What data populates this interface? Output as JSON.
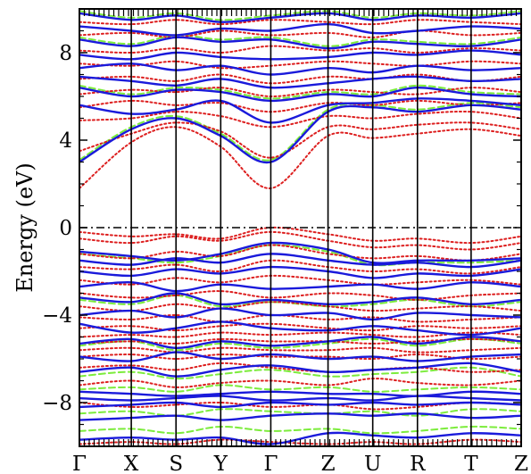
{
  "chart_data": {
    "type": "line",
    "title": "",
    "ylabel": "Energy (eV)",
    "xlabel": "",
    "ylim": [
      -10,
      10
    ],
    "yticks": [
      8,
      4,
      0,
      -4,
      -8
    ],
    "ytick_labels": [
      "8",
      "4",
      "0",
      "−4",
      "−8"
    ],
    "kpoints": [
      "Γ",
      "X",
      "S",
      "Y",
      "Γ",
      "Z",
      "U",
      "R",
      "T",
      "Z"
    ],
    "kpoint_positions": [
      0,
      0.58,
      1.08,
      1.58,
      2.14,
      2.78,
      3.28,
      3.78,
      4.38,
      4.94
    ],
    "fermi_level": 0,
    "grid": false,
    "legend": "none",
    "colors": {
      "series_a": "#1a1adb",
      "series_b": "#dd1f1f",
      "series_c": "#7cec3c",
      "fermi": "#000000"
    },
    "series": [
      {
        "style": "solid",
        "color": "#1a1adb",
        "bands": [
          [
            -9.7,
            -9.6,
            -9.7,
            -9.6,
            -9.9,
            -9.4,
            -9.5,
            -9.6,
            -9.4,
            -9.5
          ],
          [
            -8.8,
            -8.7,
            -8.6,
            -8.8,
            -8.6,
            -8.5,
            -8.6,
            -8.5,
            -8.7,
            -8.6
          ],
          [
            -8.2,
            -8.1,
            -8.0,
            -8.2,
            -8.0,
            -8.1,
            -8.0,
            -8.1,
            -8.0,
            -8.1
          ],
          [
            -7.8,
            -7.9,
            -7.8,
            -7.7,
            -7.9,
            -7.8,
            -7.9,
            -7.7,
            -7.8,
            -7.9
          ],
          [
            -7.5,
            -7.6,
            -7.7,
            -7.6,
            -7.5,
            -7.6,
            -7.6,
            -7.7,
            -7.5,
            -7.6
          ],
          [
            -6.6,
            -6.4,
            -6.8,
            -6.5,
            -6.3,
            -6.6,
            -6.5,
            -6.4,
            -6.2,
            -6.6
          ],
          [
            -5.9,
            -6.1,
            -5.7,
            -6.0,
            -5.8,
            -6.0,
            -5.9,
            -6.1,
            -5.9,
            -5.8
          ],
          [
            -5.3,
            -5.1,
            -5.5,
            -5.2,
            -5.4,
            -5.2,
            -5.0,
            -5.3,
            -5.0,
            -5.2
          ],
          [
            -4.4,
            -4.8,
            -4.6,
            -4.3,
            -4.6,
            -4.7,
            -4.5,
            -4.7,
            -4.9,
            -4.6
          ],
          [
            -4.0,
            -3.8,
            -4.1,
            -3.7,
            -4.0,
            -3.9,
            -4.2,
            -3.9,
            -4.0,
            -4.1
          ],
          [
            -3.2,
            -3.4,
            -3.0,
            -3.5,
            -3.3,
            -3.5,
            -3.4,
            -3.2,
            -3.5,
            -3.3
          ],
          [
            -2.7,
            -2.5,
            -2.9,
            -2.6,
            -2.8,
            -2.7,
            -2.6,
            -2.8,
            -2.5,
            -2.7
          ],
          [
            -2.0,
            -2.2,
            -1.9,
            -2.1,
            -1.8,
            -2.0,
            -2.3,
            -2.1,
            -2.2,
            -1.9
          ],
          [
            -1.5,
            -1.7,
            -1.4,
            -1.6,
            -1.2,
            -1.5,
            -1.7,
            -1.6,
            -1.8,
            -1.5
          ],
          [
            -1.1,
            -1.3,
            -1.5,
            -1.2,
            -0.7,
            -1.0,
            -1.6,
            -1.5,
            -1.5,
            -1.4
          ],
          [
            3.0,
            4.5,
            5.0,
            4.2,
            3.0,
            5.3,
            5.5,
            5.3,
            5.6,
            5.4
          ],
          [
            5.6,
            5.2,
            5.4,
            5.8,
            4.8,
            5.6,
            5.7,
            5.9,
            5.8,
            5.6
          ],
          [
            6.4,
            6.0,
            6.3,
            6.2,
            5.8,
            6.1,
            6.0,
            6.4,
            6.1,
            6.0
          ],
          [
            6.9,
            6.7,
            6.5,
            6.8,
            6.4,
            6.6,
            6.8,
            6.9,
            6.7,
            6.8
          ],
          [
            7.3,
            7.5,
            7.2,
            7.4,
            7.0,
            7.3,
            7.1,
            7.4,
            7.2,
            7.3
          ],
          [
            7.9,
            7.7,
            8.0,
            7.8,
            7.7,
            7.8,
            8.0,
            7.9,
            8.1,
            7.9
          ],
          [
            8.6,
            8.3,
            8.7,
            8.5,
            8.6,
            8.2,
            8.5,
            8.4,
            8.3,
            8.6
          ],
          [
            9.2,
            9.0,
            8.8,
            9.1,
            9.0,
            9.3,
            8.9,
            9.0,
            9.2,
            9.1
          ],
          [
            9.8,
            9.5,
            9.7,
            9.4,
            9.6,
            9.8,
            9.5,
            9.7,
            9.6,
            9.8
          ]
        ]
      },
      {
        "style": "dotted",
        "color": "#dd1f1f",
        "bands": [
          [
            -9.9,
            -9.8,
            -9.9,
            -9.7,
            -9.8,
            -9.9,
            -9.8,
            -9.9,
            -9.7,
            -9.8
          ],
          [
            -8.0,
            -8.2,
            -8.1,
            -8.0,
            -8.2,
            -8.1,
            -8.3,
            -8.2,
            -8.0,
            -8.1
          ],
          [
            -7.2,
            -7.0,
            -7.3,
            -7.1,
            -7.0,
            -7.2,
            -6.9,
            -7.1,
            -7.2,
            -7.0
          ],
          [
            -6.4,
            -6.3,
            -6.5,
            -6.2,
            -6.4,
            -6.6,
            -6.5,
            -6.4,
            -6.6,
            -6.5
          ],
          [
            -5.9,
            -5.8,
            -6.0,
            -5.8,
            -5.9,
            -5.9,
            -6.0,
            -5.8,
            -6.0,
            -5.9
          ],
          [
            -5.6,
            -5.5,
            -5.7,
            -5.5,
            -5.6,
            -5.6,
            -5.5,
            -5.7,
            -5.6,
            -5.5
          ],
          [
            -5.3,
            -5.2,
            -5.3,
            -5.1,
            -5.2,
            -5.2,
            -5.3,
            -5.2,
            -5.1,
            -5.2
          ],
          [
            -5.0,
            -4.9,
            -5.0,
            -4.8,
            -4.9,
            -4.8,
            -4.9,
            -5.0,
            -4.8,
            -4.9
          ],
          [
            -4.6,
            -4.5,
            -4.7,
            -4.5,
            -4.4,
            -4.6,
            -4.7,
            -4.5,
            -4.6,
            -4.5
          ],
          [
            -4.1,
            -4.2,
            -4.0,
            -4.3,
            -4.0,
            -4.2,
            -4.1,
            -4.3,
            -4.2,
            -4.1
          ],
          [
            -3.6,
            -3.8,
            -3.5,
            -3.7,
            -3.4,
            -3.6,
            -3.8,
            -3.7,
            -3.6,
            -3.8
          ],
          [
            -3.0,
            -3.2,
            -3.1,
            -2.9,
            -3.2,
            -3.0,
            -3.1,
            -3.3,
            -3.1,
            -3.0
          ],
          [
            -2.4,
            -2.6,
            -2.3,
            -2.5,
            -2.2,
            -2.4,
            -2.6,
            -2.5,
            -2.4,
            -2.6
          ],
          [
            -1.8,
            -1.9,
            -1.7,
            -2.0,
            -1.5,
            -1.8,
            -2.0,
            -1.9,
            -2.1,
            -1.8
          ],
          [
            -1.2,
            -1.4,
            -1.1,
            -1.3,
            -0.8,
            -1.2,
            -1.4,
            -1.3,
            -1.5,
            -1.2
          ],
          [
            -0.5,
            -0.7,
            -0.4,
            -0.6,
            -0.2,
            -0.6,
            -0.9,
            -0.8,
            -1.0,
            -0.7
          ],
          [
            -0.2,
            -0.4,
            -0.3,
            -0.5,
            0.0,
            -0.3,
            -0.6,
            -0.5,
            -0.7,
            -0.4
          ],
          [
            1.8,
            3.9,
            4.6,
            3.7,
            1.8,
            4.2,
            4.1,
            4.3,
            4.5,
            4.2
          ],
          [
            3.5,
            4.3,
            4.8,
            4.4,
            3.2,
            4.6,
            4.5,
            4.7,
            4.8,
            4.5
          ],
          [
            4.9,
            5.0,
            5.3,
            5.1,
            4.6,
            5.1,
            5.0,
            5.2,
            5.3,
            5.0
          ],
          [
            5.5,
            5.8,
            5.6,
            5.7,
            5.3,
            5.7,
            5.6,
            5.8,
            5.6,
            5.7
          ],
          [
            6.1,
            6.3,
            6.2,
            6.4,
            6.0,
            6.3,
            6.2,
            6.1,
            6.4,
            6.2
          ],
          [
            6.8,
            6.9,
            6.7,
            7.0,
            6.6,
            6.9,
            6.8,
            7.0,
            6.7,
            6.9
          ],
          [
            7.5,
            7.4,
            7.6,
            7.3,
            7.4,
            7.6,
            7.5,
            7.4,
            7.6,
            7.5
          ],
          [
            8.1,
            8.0,
            8.2,
            8.0,
            8.3,
            8.1,
            8.2,
            8.0,
            8.2,
            8.1
          ],
          [
            8.8,
            8.9,
            8.7,
            9.0,
            8.8,
            8.9,
            8.7,
            9.0,
            8.8,
            8.9
          ],
          [
            9.4,
            9.3,
            9.5,
            9.3,
            9.5,
            9.4,
            9.3,
            9.5,
            9.4,
            9.3
          ]
        ]
      },
      {
        "style": "dashed",
        "color": "#7cec3c",
        "bands": [
          [
            -9.3,
            -9.2,
            -9.4,
            -9.1,
            -9.3,
            -9.2,
            -9.4,
            -9.3,
            -9.1,
            -9.2
          ],
          [
            -8.5,
            -8.4,
            -8.6,
            -8.3,
            -8.4,
            -8.5,
            -8.4,
            -8.6,
            -8.3,
            -8.4
          ],
          [
            -7.4,
            -7.3,
            -7.5,
            -7.2,
            -7.4,
            -7.3,
            -7.5,
            -7.4,
            -7.3,
            -7.4
          ],
          [
            -6.8,
            -6.6,
            -6.9,
            -6.7,
            -6.5,
            -6.8,
            -6.7,
            -6.6,
            -6.4,
            -6.8
          ],
          [
            -5.4,
            -5.2,
            -5.6,
            -5.3,
            -5.5,
            -5.3,
            -5.1,
            -5.4,
            -5.1,
            -5.3
          ],
          [
            -3.3,
            -3.5,
            -3.1,
            -3.6,
            -3.4,
            -3.6,
            -3.5,
            -3.3,
            -3.6,
            -3.4
          ],
          [
            -1.2,
            -1.4,
            -1.6,
            -1.3,
            -0.8,
            -1.1,
            -1.7,
            -1.6,
            -1.6,
            -1.5
          ],
          [
            3.1,
            4.6,
            5.1,
            4.3,
            3.1,
            5.4,
            5.6,
            5.4,
            5.7,
            5.5
          ],
          [
            6.5,
            6.1,
            6.4,
            6.3,
            5.9,
            6.2,
            6.1,
            6.5,
            6.2,
            6.1
          ],
          [
            8.7,
            8.4,
            8.8,
            8.6,
            8.7,
            8.3,
            8.6,
            8.5,
            8.4,
            8.7
          ],
          [
            9.9,
            9.6,
            9.8,
            9.5,
            9.7,
            9.9,
            9.6,
            9.8,
            9.7,
            9.9
          ]
        ]
      }
    ]
  }
}
